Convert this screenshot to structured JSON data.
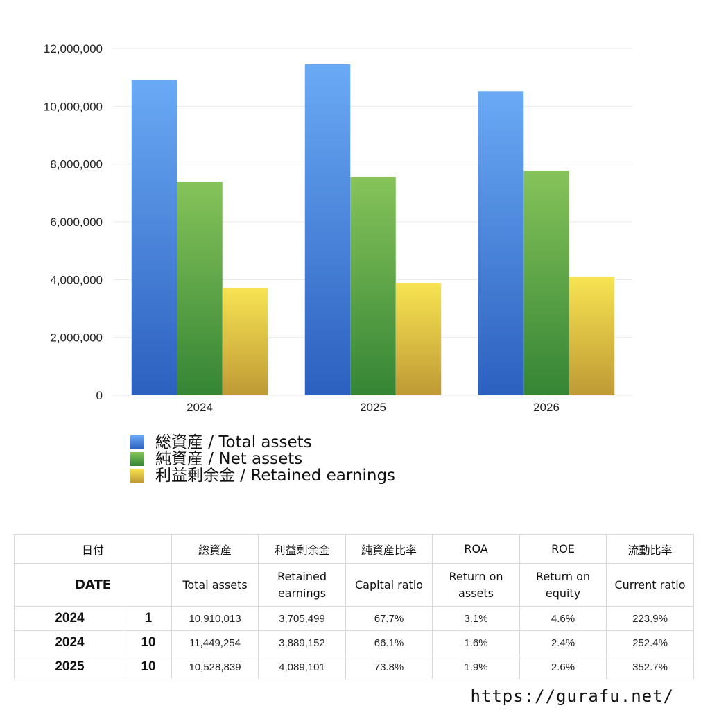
{
  "chart_data": {
    "type": "bar",
    "categories": [
      "2024",
      "2025",
      "2026"
    ],
    "series": [
      {
        "name": "総資産 / Total assets",
        "values": [
          10910013,
          11449254,
          10528839
        ],
        "color_top": "#6aaaf5",
        "color_bottom": "#2c60bf"
      },
      {
        "name": "純資産 / Net assets",
        "values": [
          7390000,
          7560000,
          7770000
        ],
        "color_top": "#86c35a",
        "color_bottom": "#358535"
      },
      {
        "name": "利益剰余金 / Retained earnings",
        "values": [
          3705499,
          3889152,
          4089101
        ],
        "color_top": "#f7e352",
        "color_bottom": "#bf9a35"
      }
    ],
    "ylim": [
      0,
      12000000
    ],
    "yticks": [
      0,
      2000000,
      4000000,
      6000000,
      8000000,
      10000000,
      12000000
    ],
    "ytick_labels": [
      "0",
      "2,000,000",
      "4,000,000",
      "6,000,000",
      "8,000,000",
      "10,000,000",
      "12,000,000"
    ],
    "grid": true,
    "legend_position": "bottom"
  },
  "table": {
    "headers_ja": [
      "日付",
      "",
      "総資産",
      "利益剰余金",
      "純資産比率",
      "ROA",
      "ROE",
      "流動比率"
    ],
    "headers_en": [
      "DATE",
      "",
      "Total assets",
      "Retained earnings",
      "Capital ratio",
      "Return on assets",
      "Return on equity",
      "Current ratio"
    ],
    "rows": [
      {
        "year": "2024",
        "month": "1",
        "total_assets": "10,910,013",
        "retained_earnings": "3,705,499",
        "capital_ratio": "67.7%",
        "roa": "3.1%",
        "roe": "4.6%",
        "current_ratio": "223.9%"
      },
      {
        "year": "2024",
        "month": "10",
        "total_assets": "11,449,254",
        "retained_earnings": "3,889,152",
        "capital_ratio": "66.1%",
        "roa": "1.6%",
        "roe": "2.4%",
        "current_ratio": "252.4%"
      },
      {
        "year": "2025",
        "month": "10",
        "total_assets": "10,528,839",
        "retained_earnings": "4,089,101",
        "capital_ratio": "73.8%",
        "roa": "1.9%",
        "roe": "2.6%",
        "current_ratio": "352.7%"
      }
    ]
  },
  "footer": {
    "url": "https://gurafu.net/"
  }
}
